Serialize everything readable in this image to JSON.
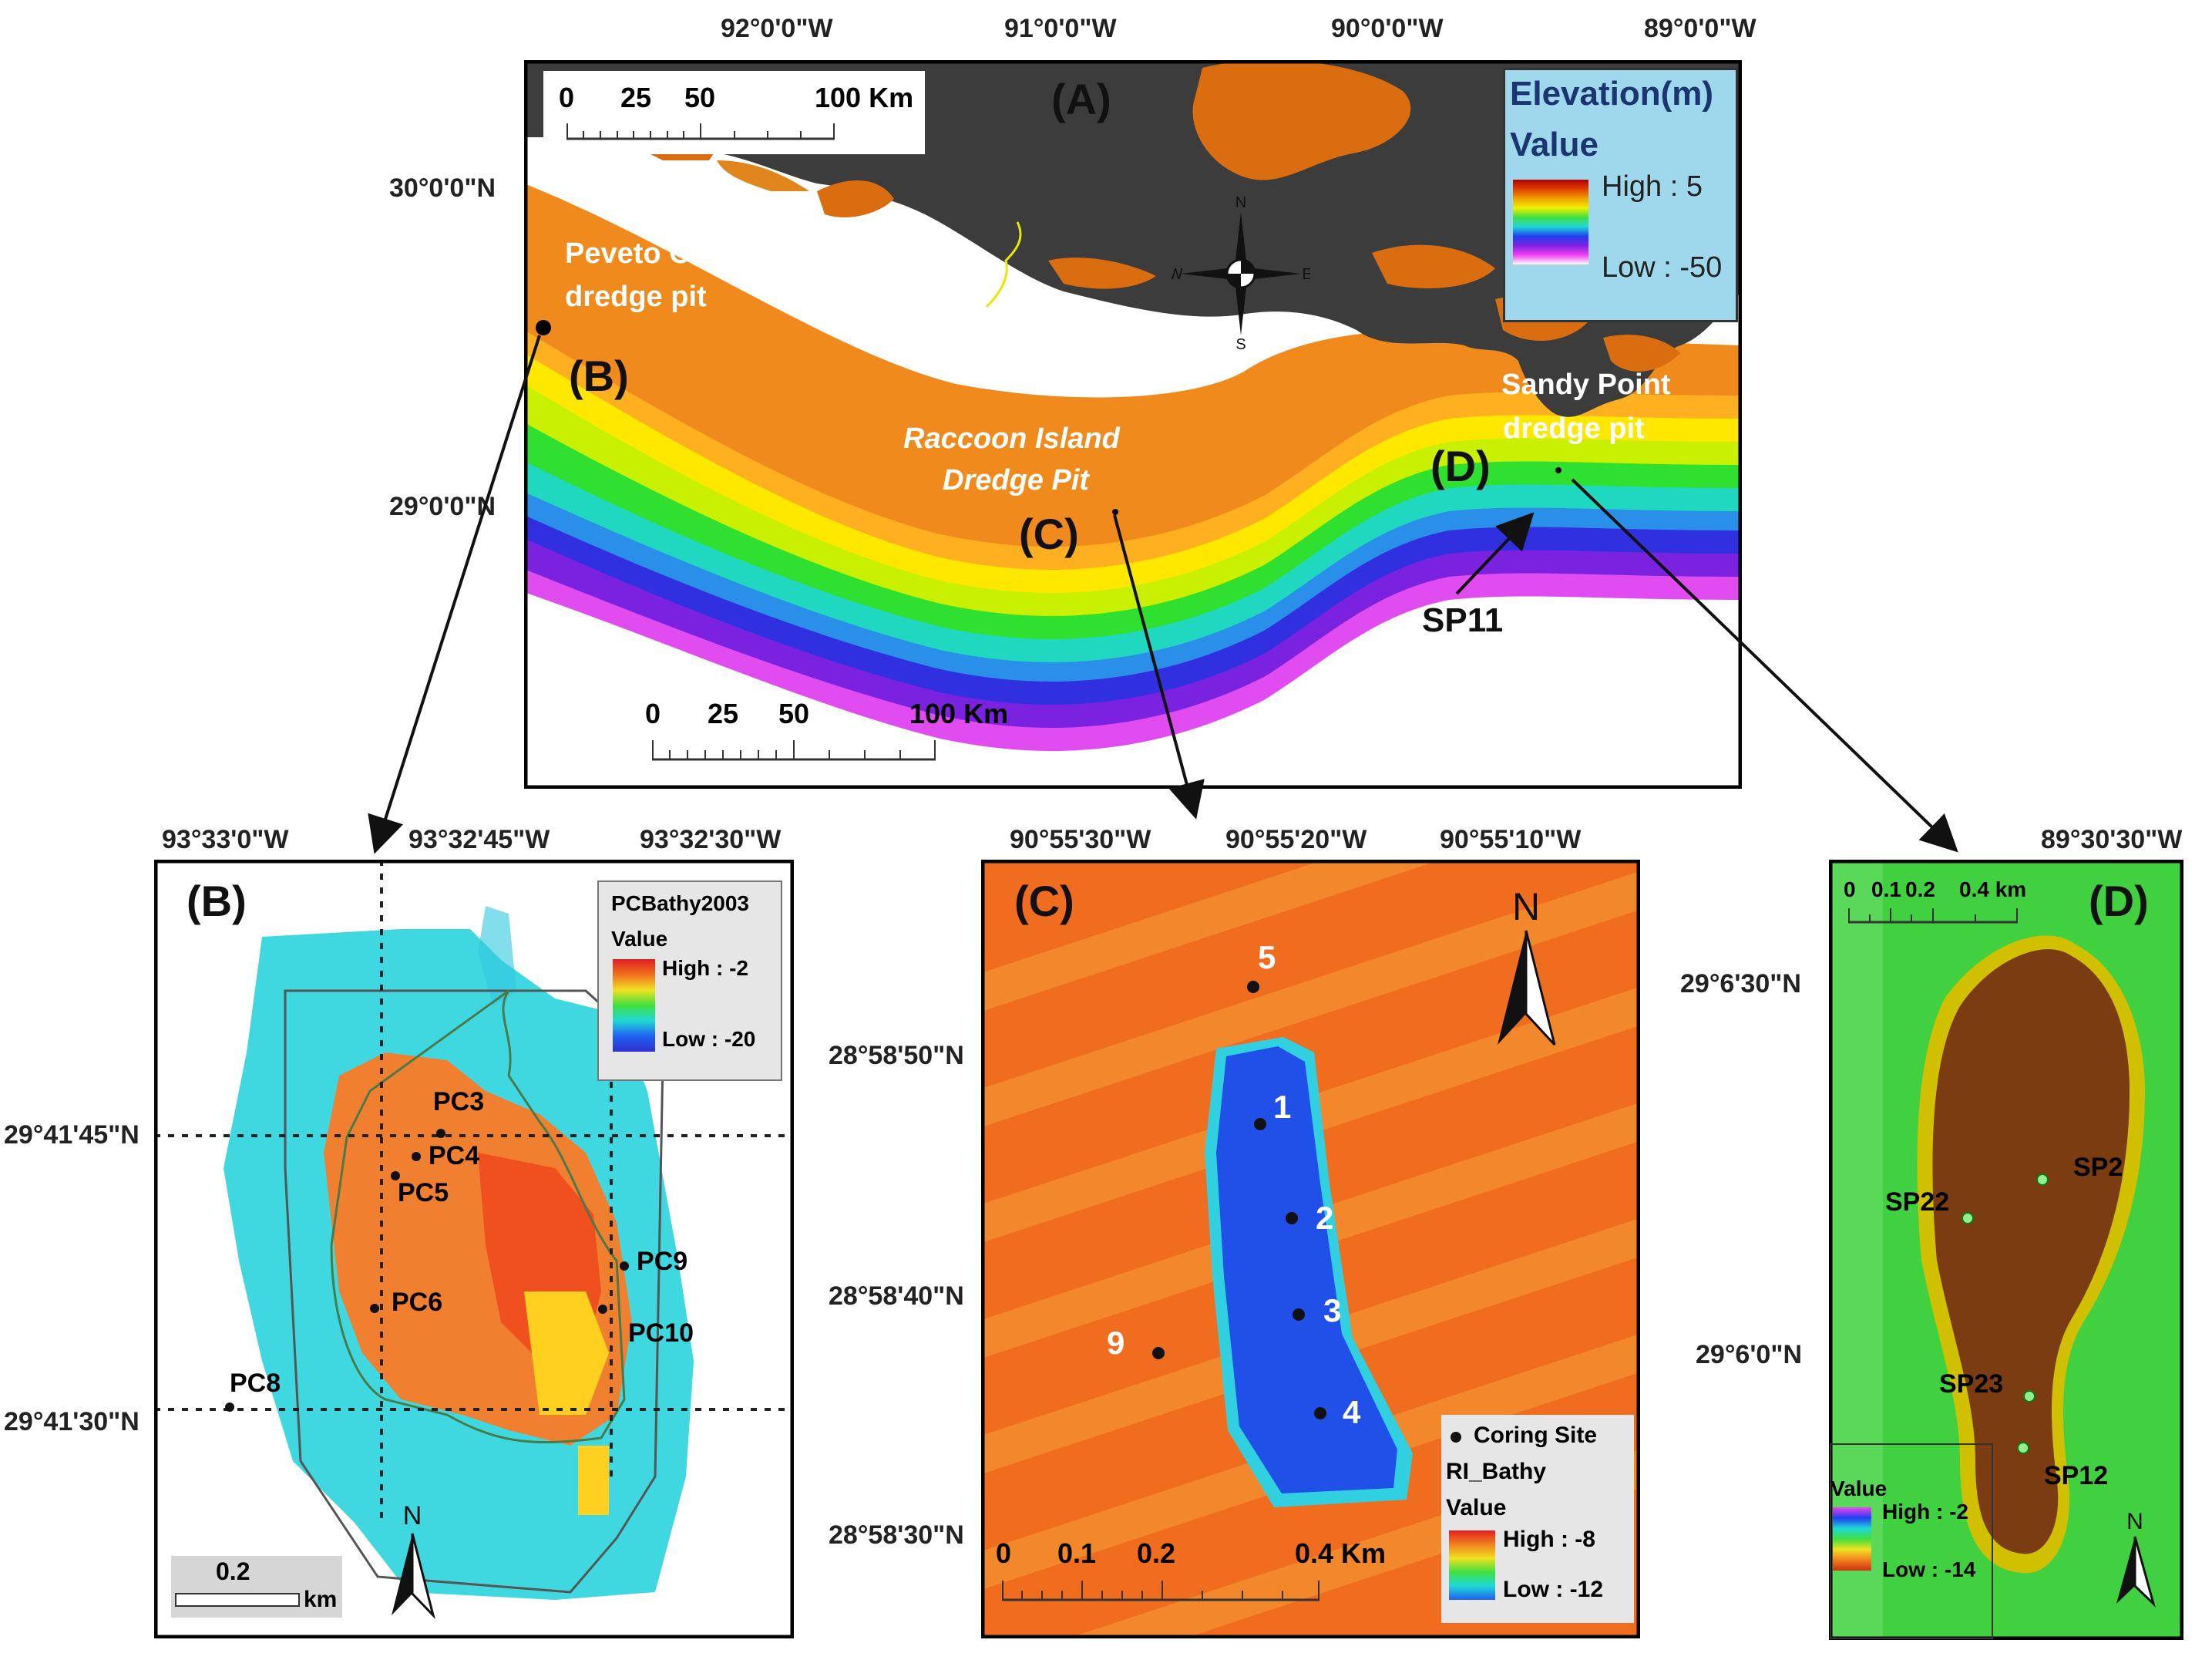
{
  "panel_a": {
    "letter": "(A)",
    "lon_labels": [
      "92°0'0\"W",
      "91°0'0\"W",
      "90°0'0\"W",
      "89°0'0\"W"
    ],
    "lat_labels": [
      "30°0'0\"N",
      "29°0'0\"N"
    ],
    "scale_top": {
      "ticks": [
        "0",
        "25",
        "50",
        "100 Km"
      ]
    },
    "scale_bottom": {
      "ticks": [
        "0",
        "25",
        "50",
        "100 Km"
      ]
    },
    "legend": {
      "title": "Elevation(m)",
      "subtitle": "Value",
      "high": "High : 5",
      "low": "Low : -50"
    },
    "compass": {
      "n": "N",
      "s": "S",
      "e": "E",
      "w": "W"
    },
    "sites": {
      "peveto": [
        "Peveto Channel",
        "dredge pit"
      ],
      "raccoon": [
        "Raccoon Island",
        "Dredge Pit"
      ],
      "sandy": [
        "Sandy Point",
        "dredge pit"
      ],
      "b": "(B)",
      "c": "(C)",
      "d": "(D)",
      "sp11": "SP11"
    }
  },
  "panel_b": {
    "letter": "(B)",
    "lon_labels": [
      "93°33'0\"W",
      "93°32'45\"W",
      "93°32'30\"W"
    ],
    "lat_labels": [
      "29°41'45\"N",
      "29°41'30\"N"
    ],
    "legend": {
      "title": "PCBathy2003",
      "subtitle": "Value",
      "high": "High : -2",
      "low": "Low : -20"
    },
    "scale": {
      "value": "0.2",
      "unit": "km"
    },
    "north": "N",
    "sites": [
      "PC3",
      "PC4",
      "PC5",
      "PC6",
      "PC8",
      "PC9",
      "PC10"
    ]
  },
  "panel_c": {
    "letter": "(C)",
    "lon_labels": [
      "90°55'30\"W",
      "90°55'20\"W",
      "90°55'10\"W"
    ],
    "lat_labels": [
      "28°58'50\"N",
      "28°58'40\"N",
      "28°58'30\"N"
    ],
    "legend": {
      "point": "Coring Site",
      "title": "RI_Bathy",
      "subtitle": "Value",
      "high": "High : -8",
      "low": "Low : -12"
    },
    "scale": {
      "ticks": [
        "0",
        "0.1",
        "0.2",
        "0.4 Km"
      ]
    },
    "north": "N",
    "sites": [
      "5",
      "1",
      "2",
      "3",
      "4",
      "9"
    ]
  },
  "panel_d": {
    "letter": "(D)",
    "lon_labels": [
      "89°30'30\"W"
    ],
    "lat_labels": [
      "29°6'30\"N",
      "29°6'0\"N"
    ],
    "legend": {
      "subtitle": "Value",
      "high": "High : -2",
      "low": "Low : -14"
    },
    "scale": {
      "ticks": [
        "0",
        "0.1",
        "0.2",
        "0.4 km"
      ]
    },
    "north": "N",
    "sites": [
      "SP2",
      "SP22",
      "SP23",
      "SP12"
    ]
  },
  "colors": {
    "land": "#3c3c3c",
    "shelf_orange": "#f08a1c",
    "deep_blue": "#2a2ad8",
    "legend_bg_a": "#9fd8ec"
  }
}
